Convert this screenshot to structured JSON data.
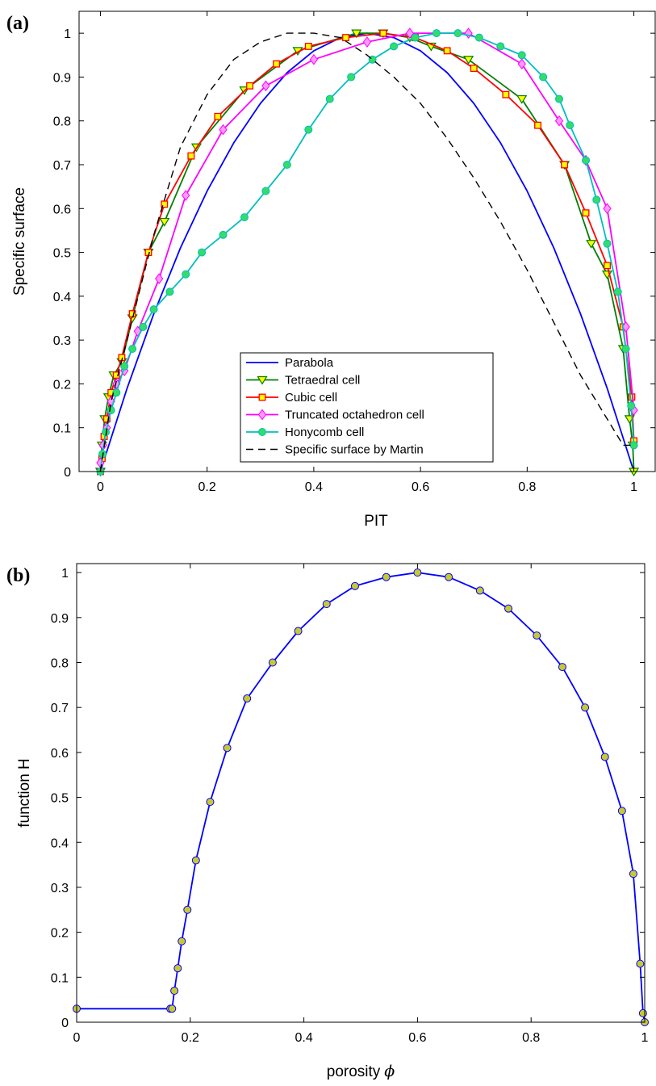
{
  "chart_data": [
    {
      "type": "line",
      "panel_label": "(a)",
      "xlabel": "PIT",
      "ylabel": "Specific surface",
      "xlim": [
        -0.04,
        1.04
      ],
      "ylim": [
        0,
        1.05
      ],
      "xticks": [
        0,
        0.2,
        0.4,
        0.6,
        0.8,
        1
      ],
      "xtick_labels": [
        "0",
        "0.2",
        "0.4",
        "0.6",
        "0.8",
        "1"
      ],
      "yticks": [
        0,
        0.1,
        0.2,
        0.3,
        0.4,
        0.5,
        0.6,
        0.7,
        0.8,
        0.9,
        1
      ],
      "ytick_labels": [
        "0",
        "0.1",
        "0.2",
        "0.3",
        "0.4",
        "0.5",
        "0.6",
        "0.7",
        "0.8",
        "0.9",
        "1"
      ],
      "grid": false,
      "legend_position": "bottom-center",
      "series": [
        {
          "name": "Parabola",
          "color": "#0000ff",
          "marker": "none",
          "dash": "solid",
          "x": [
            0,
            0.05,
            0.1,
            0.15,
            0.2,
            0.25,
            0.3,
            0.35,
            0.4,
            0.45,
            0.5,
            0.55,
            0.6,
            0.65,
            0.7,
            0.75,
            0.8,
            0.85,
            0.9,
            0.95,
            1
          ],
          "y": [
            0,
            0.19,
            0.36,
            0.51,
            0.64,
            0.75,
            0.84,
            0.91,
            0.96,
            0.99,
            1,
            0.99,
            0.96,
            0.91,
            0.84,
            0.75,
            0.64,
            0.51,
            0.36,
            0.19,
            0
          ]
        },
        {
          "name": "Tetraedral cell",
          "color": "#008000",
          "marker": "triangle-down",
          "marker_face": "#ffff00",
          "dash": "solid",
          "x": [
            0,
            0.003,
            0.008,
            0.015,
            0.025,
            0.04,
            0.06,
            0.09,
            0.12,
            0.18,
            0.27,
            0.37,
            0.48,
            0.53,
            0.58,
            0.62,
            0.69,
            0.79,
            0.87,
            0.92,
            0.95,
            0.98,
            0.992,
            0.998,
            1
          ],
          "y": [
            0,
            0.06,
            0.12,
            0.17,
            0.22,
            0.25,
            0.35,
            0.5,
            0.57,
            0.74,
            0.87,
            0.96,
            1,
            1,
            0.99,
            0.97,
            0.94,
            0.85,
            0.7,
            0.52,
            0.45,
            0.28,
            0.12,
            0.06,
            0
          ]
        },
        {
          "name": "Cubic cell",
          "color": "#ff0000",
          "marker": "square",
          "marker_face": "#ffff00",
          "dash": "solid",
          "x": [
            0,
            0.003,
            0.007,
            0.012,
            0.02,
            0.03,
            0.04,
            0.06,
            0.09,
            0.12,
            0.17,
            0.22,
            0.28,
            0.33,
            0.39,
            0.46,
            0.53,
            0.59,
            0.65,
            0.7,
            0.76,
            0.82,
            0.87,
            0.91,
            0.95,
            0.98,
            0.996,
            1
          ],
          "y": [
            0,
            0.03,
            0.08,
            0.12,
            0.18,
            0.22,
            0.26,
            0.36,
            0.5,
            0.61,
            0.72,
            0.81,
            0.88,
            0.93,
            0.97,
            0.99,
            1,
            0.99,
            0.96,
            0.92,
            0.86,
            0.79,
            0.7,
            0.59,
            0.47,
            0.33,
            0.17,
            0.07
          ]
        },
        {
          "name": "Truncated octahedron cell",
          "color": "#ff00ff",
          "marker": "diamond",
          "marker_face": "#ff99ff",
          "dash": "solid",
          "x": [
            0,
            0.005,
            0.012,
            0.02,
            0.03,
            0.045,
            0.07,
            0.11,
            0.16,
            0.23,
            0.31,
            0.4,
            0.5,
            0.58,
            0.69,
            0.79,
            0.86,
            0.91,
            0.95,
            0.985,
            1
          ],
          "y": [
            0.02,
            0.06,
            0.1,
            0.16,
            0.2,
            0.23,
            0.32,
            0.44,
            0.63,
            0.78,
            0.88,
            0.94,
            0.98,
            1,
            1,
            0.93,
            0.8,
            0.71,
            0.6,
            0.33,
            0.14
          ]
        },
        {
          "name": "Honycomb cell",
          "color": "#00bfbf",
          "marker": "circle",
          "marker_face": "#33dd66",
          "dash": "solid",
          "x": [
            0,
            0.004,
            0.01,
            0.02,
            0.03,
            0.045,
            0.06,
            0.08,
            0.1,
            0.13,
            0.16,
            0.19,
            0.23,
            0.27,
            0.31,
            0.35,
            0.39,
            0.43,
            0.47,
            0.51,
            0.55,
            0.59,
            0.63,
            0.67,
            0.71,
            0.75,
            0.79,
            0.83,
            0.86,
            0.88,
            0.91,
            0.93,
            0.95,
            0.97,
            0.985,
            0.995,
            1
          ],
          "y": [
            0,
            0.04,
            0.09,
            0.14,
            0.18,
            0.24,
            0.28,
            0.33,
            0.37,
            0.41,
            0.45,
            0.5,
            0.54,
            0.58,
            0.64,
            0.7,
            0.78,
            0.85,
            0.9,
            0.94,
            0.97,
            0.99,
            1,
            1,
            0.99,
            0.97,
            0.95,
            0.9,
            0.85,
            0.79,
            0.71,
            0.62,
            0.52,
            0.41,
            0.28,
            0.15,
            0.06
          ]
        },
        {
          "name": "Specific surface by Martin",
          "color": "#000000",
          "marker": "none",
          "dash": "dashed",
          "x": [
            0,
            0.02,
            0.05,
            0.1,
            0.15,
            0.2,
            0.25,
            0.3,
            0.35,
            0.4,
            0.45,
            0.5,
            0.55,
            0.6,
            0.65,
            0.7,
            0.75,
            0.8,
            0.85,
            0.9,
            0.95,
            0.98,
            1
          ],
          "y": [
            0,
            0.16,
            0.3,
            0.54,
            0.74,
            0.86,
            0.94,
            0.98,
            1,
            1,
            0.99,
            0.95,
            0.9,
            0.84,
            0.76,
            0.67,
            0.57,
            0.46,
            0.34,
            0.22,
            0.12,
            0.06,
            0.06
          ]
        }
      ]
    },
    {
      "type": "line",
      "panel_label": "(b)",
      "xlabel": "porosity",
      "xlabel_symbol": "ϕ",
      "ylabel": "function H",
      "xlim": [
        0,
        1
      ],
      "ylim": [
        0,
        1.02
      ],
      "xticks": [
        0,
        0.2,
        0.4,
        0.6,
        0.8,
        1
      ],
      "xtick_labels": [
        "0",
        "0.2",
        "0.4",
        "0.6",
        "0.8",
        "1"
      ],
      "yticks": [
        0,
        0.1,
        0.2,
        0.3,
        0.4,
        0.5,
        0.6,
        0.7,
        0.8,
        0.9,
        1
      ],
      "ytick_labels": [
        "0",
        "0.1",
        "0.2",
        "0.3",
        "0.4",
        "0.5",
        "0.6",
        "0.7",
        "0.8",
        "0.9",
        "1"
      ],
      "grid": false,
      "series": [
        {
          "color": "#0000ff",
          "marker": "circle",
          "marker_face": "#c8c832",
          "x": [
            0,
            0.165,
            0.168,
            0.172,
            0.178,
            0.185,
            0.195,
            0.21,
            0.235,
            0.265,
            0.3,
            0.345,
            0.39,
            0.44,
            0.49,
            0.545,
            0.6,
            0.655,
            0.71,
            0.76,
            0.81,
            0.855,
            0.895,
            0.93,
            0.96,
            0.98,
            0.992,
            0.997,
            1
          ],
          "y": [
            0.03,
            0.03,
            0.03,
            0.07,
            0.12,
            0.18,
            0.25,
            0.36,
            0.49,
            0.61,
            0.72,
            0.8,
            0.87,
            0.93,
            0.97,
            0.99,
            1,
            0.99,
            0.96,
            0.92,
            0.86,
            0.79,
            0.7,
            0.59,
            0.47,
            0.33,
            0.13,
            0.02,
            0
          ]
        }
      ]
    }
  ]
}
